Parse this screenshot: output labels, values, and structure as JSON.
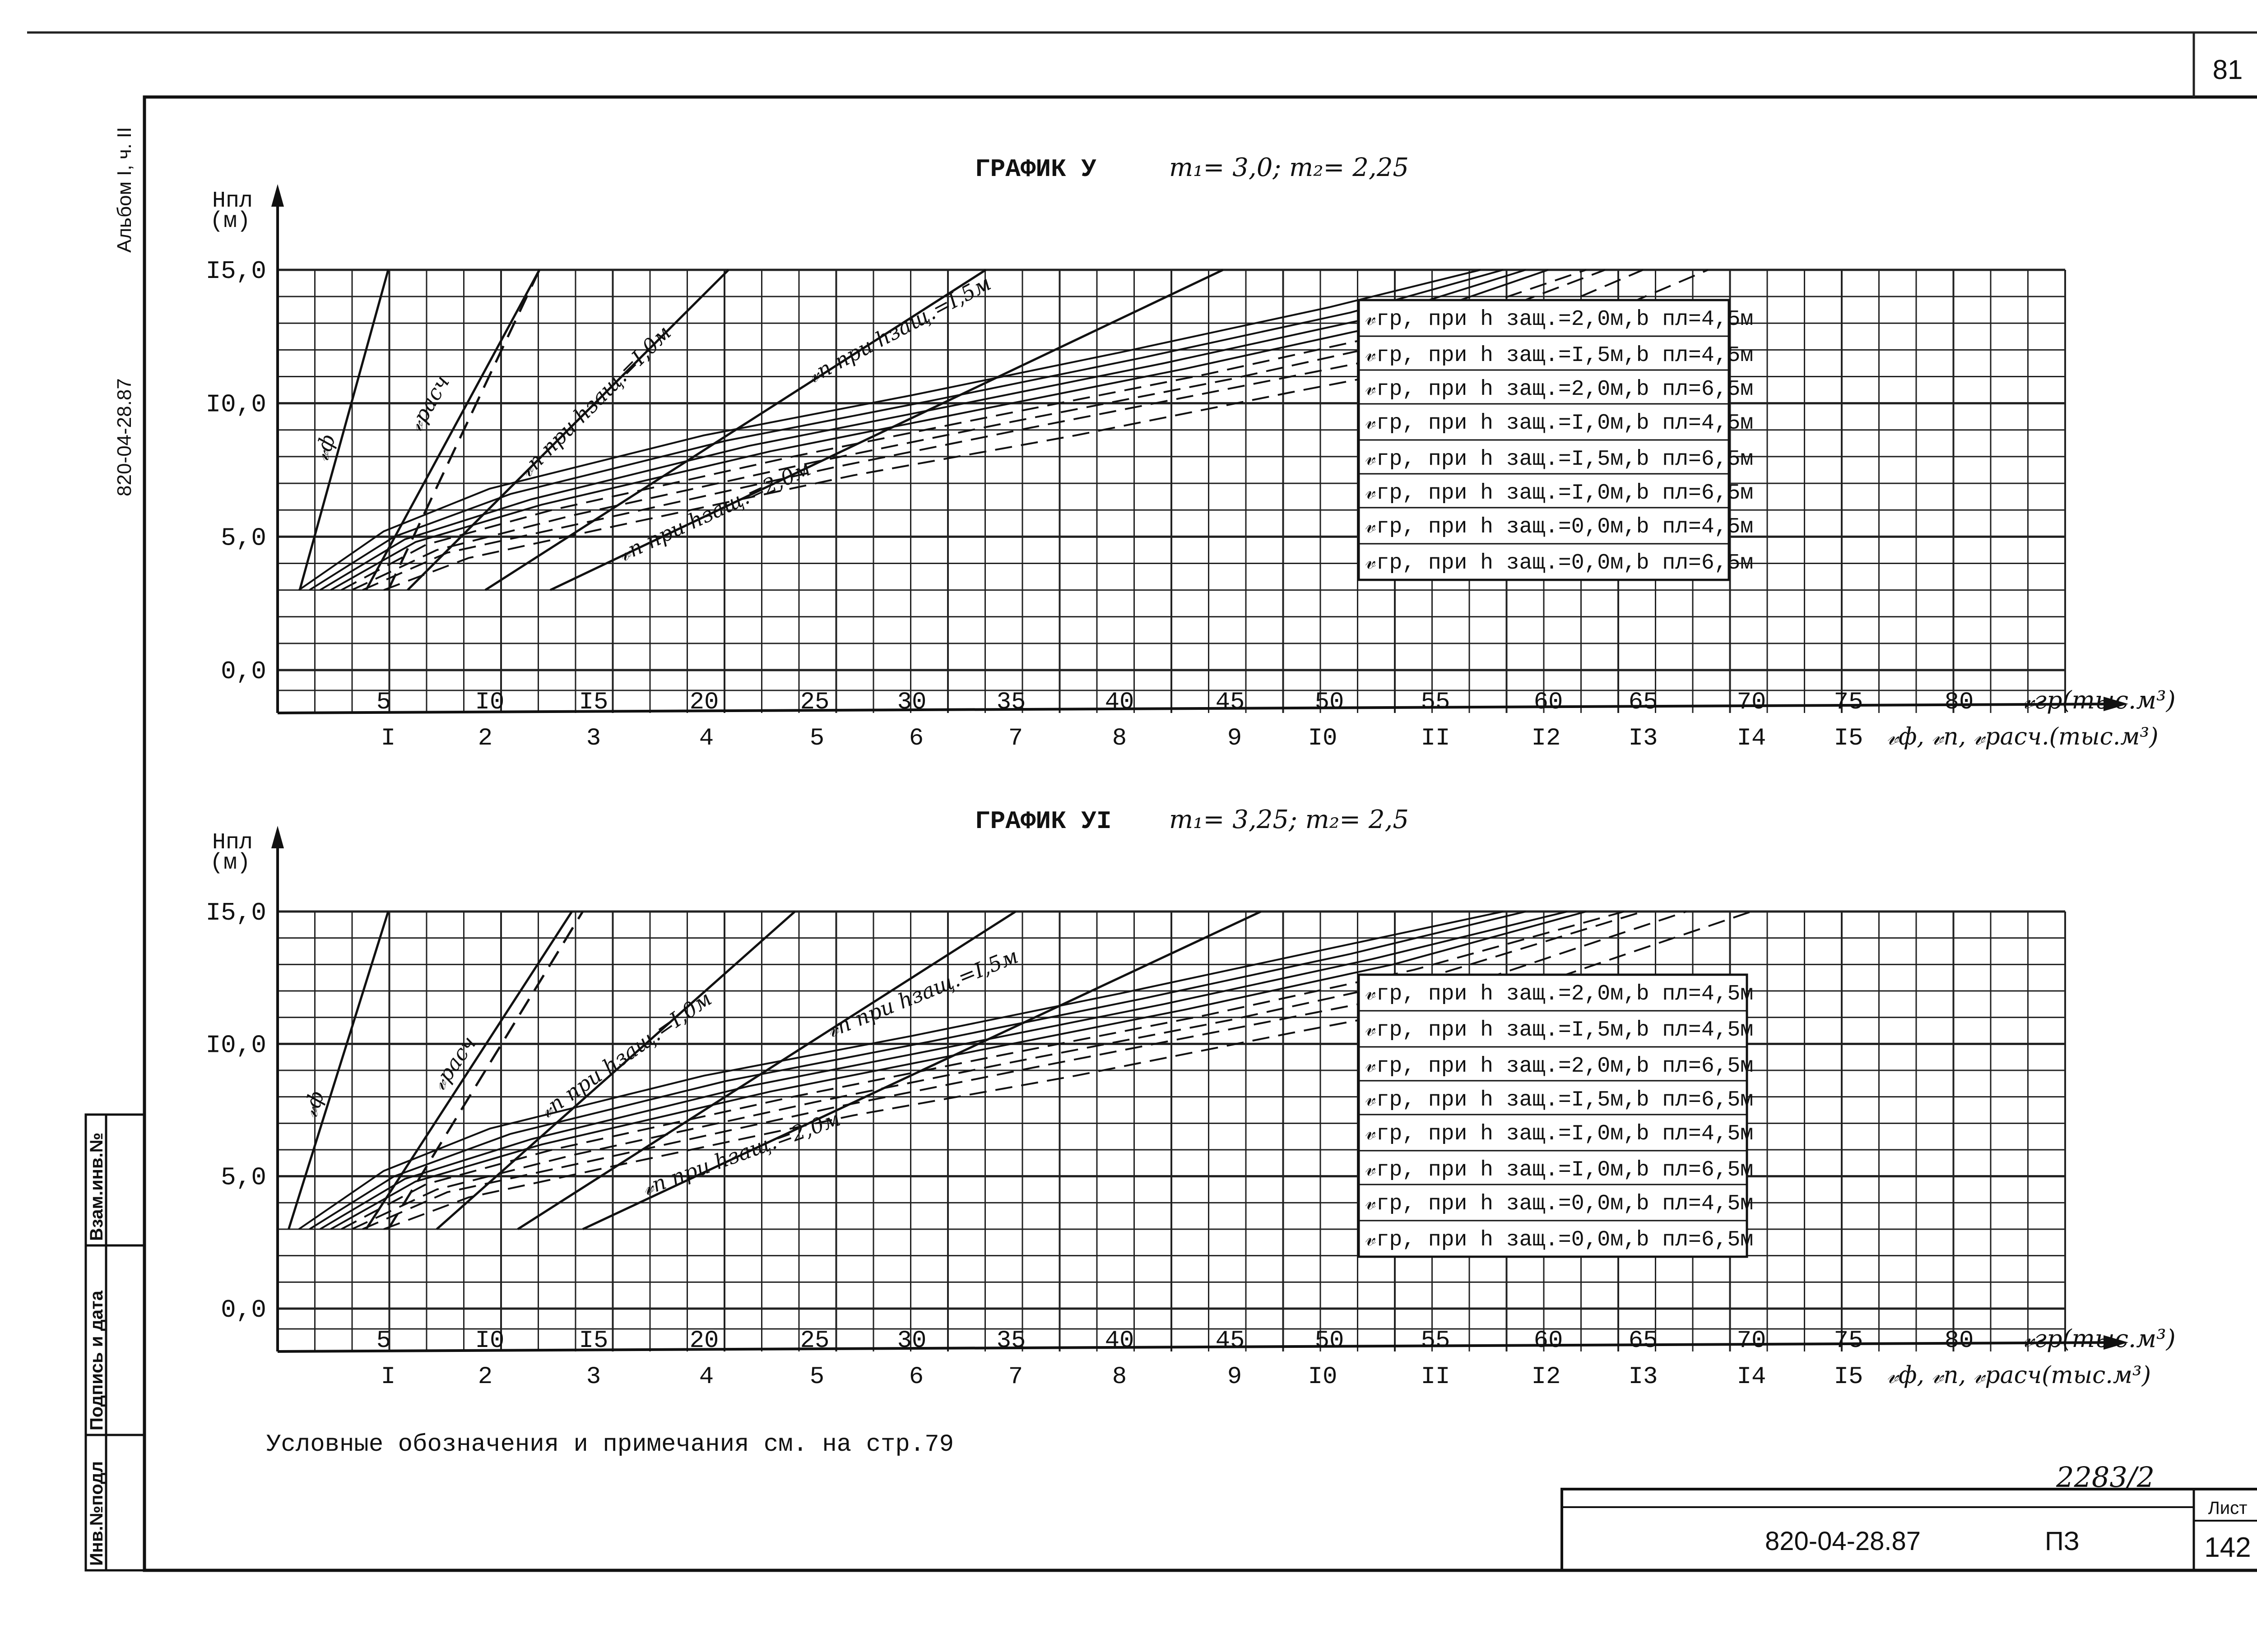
{
  "page": {
    "page_number": "81",
    "sheet_label": "Лист",
    "sheet_number": "142",
    "handwritten_code": "2283/2"
  },
  "side": {
    "album": "Альбом I, ч. II",
    "doc_code": "820-04-28.87"
  },
  "stamp_cells": [
    "Взам.инв.№",
    "Подпись и дата",
    "Инв.№подл"
  ],
  "title_block": {
    "code": "820-04-28.87",
    "section": "ПЗ"
  },
  "note": "Условные обозначения и примечания см. на стр.79",
  "colors": {
    "ink": "#111111",
    "grid": "#222222",
    "paper": "#ffffff"
  },
  "chart_data": [
    {
      "type": "line",
      "title": "ГРАФИК У",
      "params": "m₁= 3,0;   m₂= 2,25",
      "ylabel": "Нпл\n(м)",
      "ylim": [
        0,
        15
      ],
      "yticks": [
        "0,0",
        "5,0",
        "I0,0",
        "I5,0"
      ],
      "x_top_label": "𝓋гр(тыс.м³)",
      "x_top_ticks": [
        "5",
        "I0",
        "I5",
        "20",
        "25",
        "30",
        "35",
        "40",
        "45",
        "50",
        "55",
        "60",
        "65",
        "70",
        "75",
        "80"
      ],
      "x_top_lim": [
        0,
        85
      ],
      "x_bottom_label": "𝓋ф, 𝓋п, 𝓋расч.(тыс.м³)",
      "x_bottom_ticks": [
        "I",
        "2",
        "3",
        "4",
        "5",
        "6",
        "7",
        "8",
        "9",
        "I0",
        "II",
        "I2",
        "I3",
        "I4",
        "I5"
      ],
      "legend": [
        "𝓋гр, при h защ.=2,0м,b пл=4,5м",
        "𝓋гр, при h защ.=I,5м,b пл=4,5м",
        "𝓋гр, при h защ.=2,0м,b пл=6,5м",
        "𝓋гр, при h защ.=I,0м,b пл=4,5м",
        "𝓋гр, при h защ.=I,5м,b пл=6,5м",
        "𝓋гр, при h защ.=I,0м,b пл=6,5м",
        "𝓋гр, при h защ.=0,0м,b пл=4,5м",
        "𝓋гр, при h защ.=0,0м,b пл=6,5м"
      ],
      "line_labels": [
        "𝓋ф",
        "𝓋расч",
        "𝓋п при hзащ.=I,0м",
        "𝓋п при hзащ.=I,5м",
        "𝓋п при hзащ.=2,0м"
      ],
      "series_bottom_axis": [
        {
          "x": [
            0.2,
            1.0
          ],
          "y": [
            3.0,
            15.0
          ],
          "style": "solid"
        },
        {
          "x": [
            0.8,
            2.5
          ],
          "y": [
            3.0,
            15.0
          ],
          "style": "solid"
        },
        {
          "x": [
            1.0,
            2.5
          ],
          "y": [
            3.0,
            15.0
          ],
          "style": "dashed"
        },
        {
          "x": [
            1.2,
            4.2
          ],
          "y": [
            3.0,
            15.0
          ],
          "style": "solid"
        },
        {
          "x": [
            2.0,
            6.7
          ],
          "y": [
            3.0,
            15.0
          ],
          "style": "solid"
        },
        {
          "x": [
            2.6,
            8.9
          ],
          "y": [
            3.0,
            15.0
          ],
          "style": "solid"
        }
      ],
      "series_top_axis": [
        {
          "x": [
            1,
            5,
            10,
            20,
            30,
            40,
            50,
            57
          ],
          "y": [
            3.0,
            5.2,
            6.8,
            8.8,
            10.3,
            11.9,
            13.6,
            15.0
          ],
          "style": "solid"
        },
        {
          "x": [
            1.5,
            5.5,
            11,
            21,
            31,
            41,
            51,
            58
          ],
          "y": [
            3.0,
            5.0,
            6.6,
            8.6,
            10.1,
            11.7,
            13.4,
            15.0
          ],
          "style": "solid"
        },
        {
          "x": [
            2,
            6,
            12,
            22,
            32,
            42,
            52,
            59
          ],
          "y": [
            3.0,
            4.9,
            6.4,
            8.4,
            9.9,
            11.5,
            13.2,
            15.0
          ],
          "style": "solid"
        },
        {
          "x": [
            2.5,
            6.5,
            12.5,
            23,
            33,
            43,
            53,
            60
          ],
          "y": [
            3.0,
            4.8,
            6.2,
            8.2,
            9.7,
            11.3,
            13.0,
            15.0
          ],
          "style": "solid"
        },
        {
          "x": [
            3,
            7,
            13,
            24,
            34,
            44,
            54,
            62
          ],
          "y": [
            3.0,
            4.7,
            6.0,
            8.0,
            9.5,
            11.1,
            12.8,
            15.0
          ],
          "style": "dashed"
        },
        {
          "x": [
            3.5,
            7.5,
            14,
            25,
            35,
            45,
            55,
            63
          ],
          "y": [
            3.0,
            4.5,
            5.8,
            7.8,
            9.3,
            10.9,
            12.6,
            15.0
          ],
          "style": "dashed"
        },
        {
          "x": [
            4,
            8,
            15,
            26,
            36,
            46,
            57,
            65
          ],
          "y": [
            3.0,
            4.4,
            5.6,
            7.6,
            9.1,
            10.7,
            12.4,
            15.0
          ],
          "style": "dashed"
        },
        {
          "x": [
            5,
            9,
            16,
            27,
            38,
            48,
            59,
            68
          ],
          "y": [
            3.0,
            4.2,
            5.4,
            7.3,
            8.8,
            10.4,
            12.1,
            15.0
          ],
          "style": "dashed"
        }
      ]
    },
    {
      "type": "line",
      "title": "ГРАФИК УI",
      "params": "m₁= 3,25;   m₂= 2,5",
      "ylabel": "Нпл\n(м)",
      "ylim": [
        0,
        15
      ],
      "yticks": [
        "0,0",
        "5,0",
        "I0,0",
        "I5,0"
      ],
      "x_top_label": "𝓋гр(тыс.м³)",
      "x_top_ticks": [
        "5",
        "I0",
        "I5",
        "20",
        "25",
        "30",
        "35",
        "40",
        "45",
        "50",
        "55",
        "60",
        "65",
        "70",
        "75",
        "80"
      ],
      "x_top_lim": [
        0,
        85
      ],
      "x_bottom_label": "𝓋ф, 𝓋п, 𝓋расч(тыс.м³)",
      "x_bottom_ticks": [
        "I",
        "2",
        "3",
        "4",
        "5",
        "6",
        "7",
        "8",
        "9",
        "I0",
        "II",
        "I2",
        "I3",
        "I4",
        "I5"
      ],
      "legend": [
        "𝓋гр, при h защ.=2,0м,b пл=4,5м",
        "𝓋гр, при h защ.=I,5м,b пл=4,5м",
        "𝓋гр, при h защ.=2,0м,b пл=6,5м",
        "𝓋гр, при h защ.=I,5м,b пл=6,5м",
        "𝓋гр, при h защ.=I,0м,b пл=4,5м",
        "𝓋гр, при h защ.=I,0м,b пл=6,5м",
        "𝓋гр, при h защ.=0,0м,b пл=4,5м",
        "𝓋гр, при h защ.=0,0м,b пл=6,5м"
      ],
      "line_labels": [
        "𝓋ф",
        "𝓋расч",
        "𝓋п при hзащ.=I,0м",
        "𝓋п при hзащ.=I,5м",
        "𝓋п при hзащ.=2,0м"
      ],
      "series_bottom_axis": [
        {
          "x": [
            0.1,
            1.0
          ],
          "y": [
            3.0,
            15.0
          ],
          "style": "solid"
        },
        {
          "x": [
            0.8,
            2.8
          ],
          "y": [
            3.0,
            15.0
          ],
          "style": "solid"
        },
        {
          "x": [
            1.0,
            2.9
          ],
          "y": [
            3.0,
            15.0
          ],
          "style": "dashed"
        },
        {
          "x": [
            1.5,
            4.8
          ],
          "y": [
            3.0,
            15.0
          ],
          "style": "solid"
        },
        {
          "x": [
            2.3,
            7.0
          ],
          "y": [
            3.0,
            15.0
          ],
          "style": "solid"
        },
        {
          "x": [
            2.9,
            9.3
          ],
          "y": [
            3.0,
            15.0
          ],
          "style": "solid"
        }
      ],
      "series_top_axis": [
        {
          "x": [
            1,
            5,
            10,
            20,
            30,
            40,
            50,
            58
          ],
          "y": [
            3.0,
            5.2,
            6.8,
            8.8,
            10.3,
            11.9,
            13.6,
            15.0
          ],
          "style": "solid"
        },
        {
          "x": [
            1.5,
            5.5,
            11,
            21,
            31,
            41,
            51,
            59
          ],
          "y": [
            3.0,
            5.0,
            6.6,
            8.6,
            10.1,
            11.7,
            13.4,
            15.0
          ],
          "style": "solid"
        },
        {
          "x": [
            2,
            6,
            12,
            22,
            32,
            42,
            52,
            61
          ],
          "y": [
            3.0,
            4.9,
            6.4,
            8.4,
            9.9,
            11.5,
            13.2,
            15.0
          ],
          "style": "solid"
        },
        {
          "x": [
            2.5,
            6.5,
            12.5,
            23,
            33,
            43,
            53,
            62
          ],
          "y": [
            3.0,
            4.8,
            6.2,
            8.2,
            9.7,
            11.3,
            13.0,
            15.0
          ],
          "style": "solid"
        },
        {
          "x": [
            3,
            7,
            13,
            24,
            34,
            44,
            54,
            64
          ],
          "y": [
            3.0,
            4.7,
            6.0,
            8.0,
            9.5,
            11.1,
            12.8,
            15.0
          ],
          "style": "dashed"
        },
        {
          "x": [
            3.5,
            7.5,
            14,
            25,
            35,
            45,
            55,
            65
          ],
          "y": [
            3.0,
            4.5,
            5.8,
            7.8,
            9.3,
            10.9,
            12.6,
            15.0
          ],
          "style": "dashed"
        },
        {
          "x": [
            4,
            8,
            15,
            26,
            36,
            46,
            57,
            67
          ],
          "y": [
            3.0,
            4.4,
            5.6,
            7.6,
            9.1,
            10.7,
            12.4,
            15.0
          ],
          "style": "dashed"
        },
        {
          "x": [
            5,
            9,
            16,
            27,
            38,
            48,
            59,
            70
          ],
          "y": [
            3.0,
            4.2,
            5.4,
            7.3,
            8.8,
            10.4,
            12.1,
            15.0
          ],
          "style": "dashed"
        }
      ]
    }
  ]
}
